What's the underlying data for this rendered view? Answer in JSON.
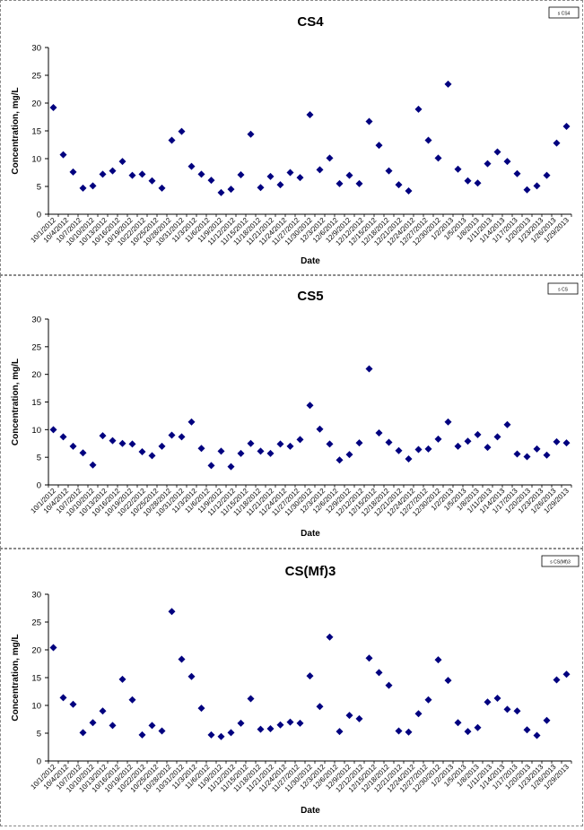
{
  "chart_data": [
    {
      "type": "scatter",
      "title": "CS4",
      "legend_label": "s CS4",
      "xlabel": "Date",
      "ylabel": "Concentration, mg/L",
      "ylim": [
        0,
        30
      ],
      "yticks": [
        0,
        5,
        10,
        15,
        20,
        25,
        30
      ],
      "x_tick_labels": [
        "10/1/2012",
        "10/4/2012",
        "10/7/2012",
        "10/10/2012",
        "10/13/2012",
        "10/16/2012",
        "10/19/2012",
        "10/22/2012",
        "10/25/2012",
        "10/28/2012",
        "10/31/2012",
        "11/3/2012",
        "11/6/2012",
        "11/9/2012",
        "11/12/2012",
        "11/15/2012",
        "11/18/2012",
        "11/21/2012",
        "11/24/2012",
        "11/27/2012",
        "11/30/2012",
        "12/3/2012",
        "12/6/2012",
        "12/9/2012",
        "12/12/2012",
        "12/15/2012",
        "12/18/2012",
        "12/21/2012",
        "12/24/2012",
        "12/27/2012",
        "12/30/2012",
        "1/2/2013",
        "1/5/2013",
        "1/8/2013",
        "1/11/2013",
        "1/14/2013",
        "1/17/2013",
        "1/20/2013",
        "1/23/2013",
        "1/26/2013",
        "1/29/2013"
      ],
      "marker_color": "#00007f",
      "values": [
        19.2,
        10.7,
        7.6,
        4.7,
        5.1,
        7.2,
        7.8,
        9.5,
        7.0,
        7.2,
        6.0,
        4.7,
        13.3,
        14.9,
        8.6,
        7.2,
        6.1,
        3.9,
        4.5,
        7.1,
        14.4,
        4.8,
        6.8,
        5.3,
        7.5,
        6.6,
        17.9,
        8.0,
        10.1,
        5.5,
        7.0,
        5.5,
        16.7,
        12.4,
        7.8,
        5.3,
        4.2,
        18.9,
        13.3,
        10.1,
        23.4,
        8.1,
        6.0,
        5.6,
        9.1,
        11.2,
        9.5,
        7.3,
        4.4,
        5.1,
        7.0,
        12.8,
        15.8
      ]
    },
    {
      "type": "scatter",
      "title": "CS5",
      "legend_label": "s CS",
      "xlabel": "Date",
      "ylabel": "Concentration, mg/L",
      "ylim": [
        0,
        30
      ],
      "yticks": [
        0,
        5,
        10,
        15,
        20,
        25,
        30
      ],
      "x_tick_labels": [
        "10/1/2012",
        "10/4/2012",
        "10/7/2012",
        "10/10/2012",
        "10/13/2012",
        "10/16/2012",
        "10/19/2012",
        "10/22/2012",
        "10/25/2012",
        "10/28/2012",
        "10/31/2012",
        "11/3/2012",
        "11/6/2012",
        "11/9/2012",
        "11/12/2012",
        "11/15/2012",
        "11/18/2012",
        "11/21/2012",
        "11/24/2012",
        "11/27/2012",
        "11/30/2012",
        "12/3/2012",
        "12/6/2012",
        "12/9/2012",
        "12/12/2012",
        "12/15/2012",
        "12/18/2012",
        "12/21/2012",
        "12/24/2012",
        "12/27/2012",
        "12/30/2012",
        "1/2/2013",
        "1/5/2013",
        "1/8/2013",
        "1/11/2013",
        "1/14/2013",
        "1/17/2013",
        "1/20/2013",
        "1/23/2013",
        "1/26/2013",
        "1/29/2013"
      ],
      "marker_color": "#00007f",
      "values": [
        10.0,
        8.7,
        7.0,
        5.8,
        3.6,
        8.9,
        8.0,
        7.5,
        7.4,
        6.0,
        5.3,
        7.0,
        9.0,
        8.7,
        11.4,
        6.6,
        3.5,
        6.1,
        3.3,
        5.7,
        7.5,
        6.1,
        5.7,
        7.4,
        7.0,
        8.2,
        14.4,
        10.1,
        7.4,
        4.5,
        5.5,
        7.6,
        21.0,
        9.4,
        7.7,
        6.2,
        4.7,
        6.4,
        6.5,
        8.3,
        11.4,
        7.0,
        7.9,
        9.1,
        6.8,
        8.7,
        10.9,
        5.6,
        5.1,
        6.5,
        5.4,
        7.8,
        7.6
      ]
    },
    {
      "type": "scatter",
      "title": "CS(Mf)3",
      "legend_label": "s CS(Mf)3",
      "xlabel": "Date",
      "ylabel": "Concentration, mg/L",
      "ylim": [
        0,
        30
      ],
      "yticks": [
        0,
        5,
        10,
        15,
        20,
        25,
        30
      ],
      "x_tick_labels": [
        "10/1/2012",
        "10/4/2012",
        "10/7/2012",
        "10/10/2012",
        "10/13/2012",
        "10/16/2012",
        "10/19/2012",
        "10/22/2012",
        "10/25/2012",
        "10/28/2012",
        "10/31/2012",
        "11/3/2012",
        "11/6/2012",
        "11/9/2012",
        "11/12/2012",
        "11/15/2012",
        "11/18/2012",
        "11/21/2012",
        "11/24/2012",
        "11/27/2012",
        "11/30/2012",
        "12/3/2012",
        "12/6/2012",
        "12/9/2012",
        "12/12/2012",
        "12/15/2012",
        "12/18/2012",
        "12/21/2012",
        "12/24/2012",
        "12/27/2012",
        "12/30/2012",
        "1/2/2013",
        "1/5/2013",
        "1/8/2013",
        "1/11/2013",
        "1/14/2013",
        "1/17/2013",
        "1/20/2013",
        "1/23/2013",
        "1/26/2013",
        "1/29/2013"
      ],
      "marker_color": "#00007f",
      "values": [
        20.4,
        11.4,
        10.2,
        5.1,
        6.9,
        9.0,
        6.4,
        14.7,
        11.0,
        4.7,
        6.4,
        5.4,
        26.9,
        18.3,
        15.2,
        9.5,
        4.7,
        4.4,
        5.1,
        6.8,
        11.2,
        5.7,
        5.8,
        6.5,
        7.0,
        6.8,
        15.3,
        9.8,
        22.3,
        5.3,
        8.2,
        7.6,
        18.5,
        15.9,
        13.6,
        5.4,
        5.2,
        8.5,
        11.0,
        18.2,
        14.5,
        6.9,
        5.3,
        6.0,
        10.6,
        11.3,
        9.3,
        9.0,
        5.6,
        4.6,
        7.3,
        14.6,
        15.6
      ]
    }
  ]
}
